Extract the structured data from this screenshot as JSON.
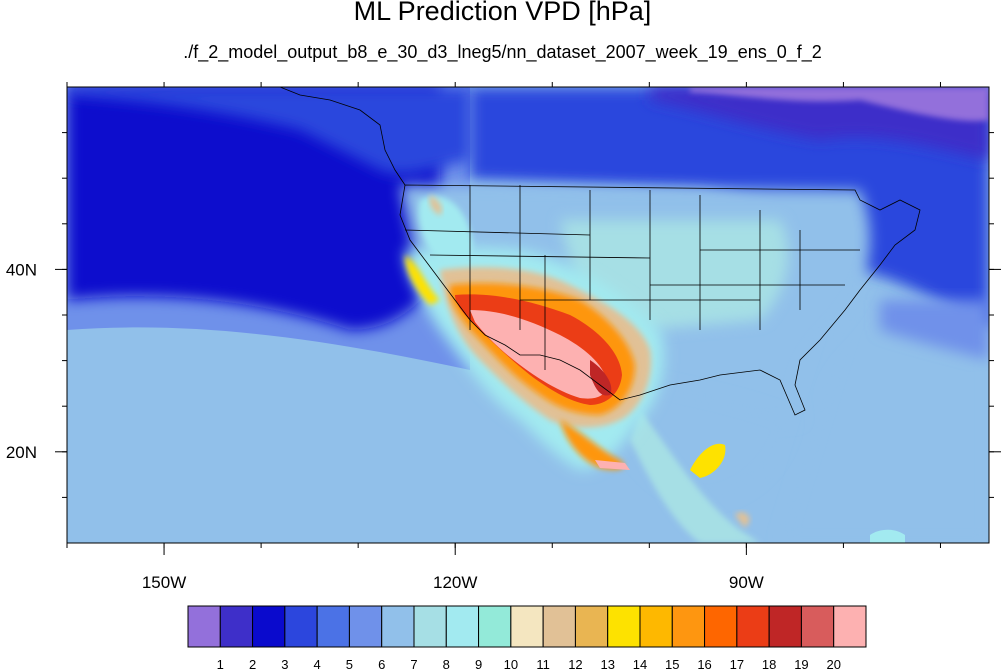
{
  "title": "ML Prediction VPD [hPa]",
  "subtitle": "./f_2_model_output_b8_e_30_d3_lneg5/nn_dataset_2007_week_19_ens_0_f_2",
  "map": {
    "projection": "cylindrical-equidistant",
    "lon_range": [
      -160,
      -65
    ],
    "lat_range": [
      10,
      60
    ],
    "lon_ticks": [
      {
        "value": -150,
        "label": "150W"
      },
      {
        "value": -120,
        "label": "120W"
      },
      {
        "value": -90,
        "label": "90W"
      }
    ],
    "lat_ticks": [
      {
        "value": 40,
        "label": "40N"
      },
      {
        "value": 20,
        "label": "20N"
      }
    ],
    "field": "VPD",
    "units": "hPa"
  },
  "colorbar": {
    "labels": [
      "1",
      "2",
      "3",
      "4",
      "5",
      "6",
      "7",
      "8",
      "9",
      "10",
      "11",
      "12",
      "13",
      "14",
      "15",
      "16",
      "17",
      "18",
      "19",
      "20"
    ],
    "colors": [
      "#9370db",
      "#3e2fc9",
      "#0a0acd",
      "#2c46dd",
      "#4b72e6",
      "#6f91ea",
      "#91c0ea",
      "#a6dfe5",
      "#a2eaf0",
      "#93ead9",
      "#f4e6c0",
      "#e1c196",
      "#e9b552",
      "#fde200",
      "#feb800",
      "#fe9610",
      "#fe6600",
      "#eb3d16",
      "#bf2626",
      "#d85c5c",
      "#fdb1b1"
    ]
  }
}
